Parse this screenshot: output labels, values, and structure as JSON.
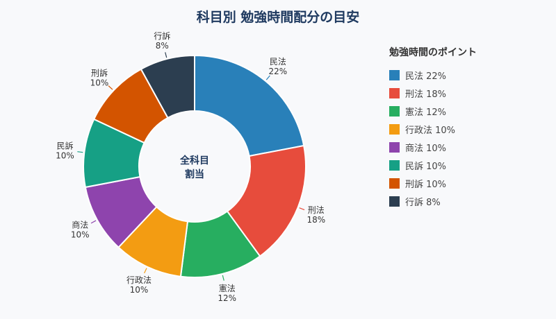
{
  "chart_data": {
    "type": "pie",
    "variant": "donut",
    "title": "科目別 勉強時間配分の目安",
    "center_label": [
      "全科目",
      "割当"
    ],
    "categories": [
      "民法",
      "刑法",
      "憲法",
      "行政法",
      "商法",
      "民訴",
      "刑訴",
      "行訴"
    ],
    "values": [
      22,
      18,
      12,
      10,
      10,
      10,
      10,
      8
    ],
    "unit": "%",
    "colors": [
      "#2980b9",
      "#e74c3c",
      "#27ae60",
      "#f39c12",
      "#8e44ad",
      "#16a085",
      "#d35400",
      "#2c3e50"
    ],
    "legend": {
      "title": "勉強時間のポイント",
      "position": "right",
      "entries": [
        "民法 22%",
        "刑法 18%",
        "憲法 12%",
        "行政法 10%",
        "商法 10%",
        "民訴 10%",
        "刑訴 10%",
        "行訴 8%"
      ]
    }
  }
}
